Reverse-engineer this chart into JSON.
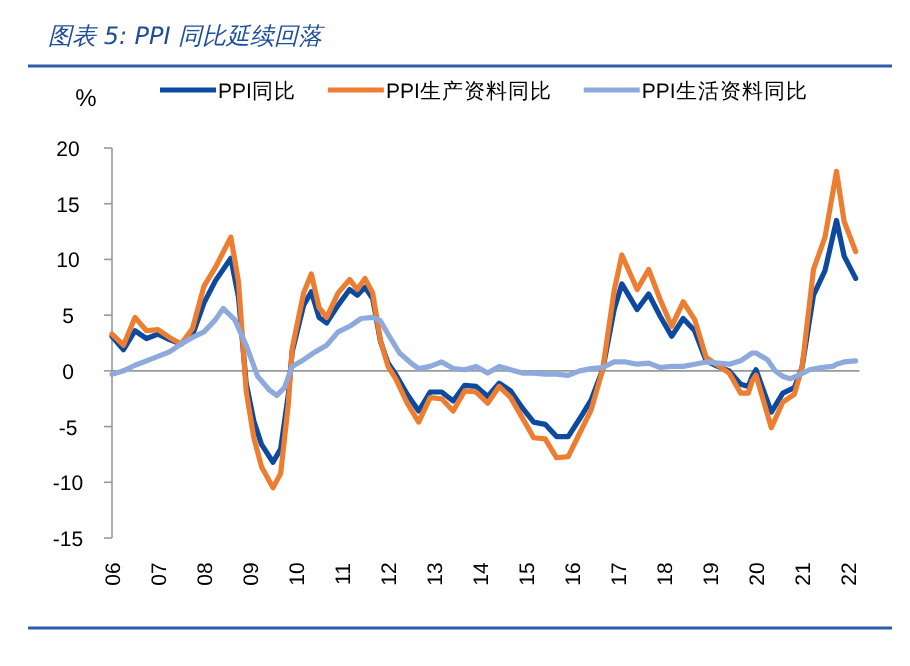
{
  "chart_data": {
    "type": "line",
    "title": "图表 5: PPI 同比延续回落",
    "ylabel": "%",
    "x": [
      "2006-01",
      "2006-04",
      "2006-07",
      "2006-10",
      "2007-01",
      "2007-04",
      "2007-07",
      "2007-10",
      "2008-01",
      "2008-04",
      "2008-08",
      "2008-10",
      "2008-12",
      "2009-02",
      "2009-04",
      "2009-07",
      "2009-09",
      "2009-11",
      "2009-12",
      "2010-03",
      "2010-05",
      "2010-07",
      "2010-09",
      "2010-12",
      "2011-03",
      "2011-05",
      "2011-07",
      "2011-09",
      "2011-11",
      "2012-01",
      "2012-03",
      "2012-06",
      "2012-09",
      "2012-12",
      "2013-03",
      "2013-06",
      "2013-09",
      "2013-12",
      "2014-03",
      "2014-06",
      "2014-09",
      "2014-12",
      "2015-03",
      "2015-06",
      "2015-09",
      "2015-12",
      "2016-03",
      "2016-06",
      "2016-09",
      "2016-12",
      "2017-02",
      "2017-06",
      "2017-09",
      "2017-12",
      "2018-03",
      "2018-06",
      "2018-09",
      "2018-12",
      "2019-03",
      "2019-06",
      "2019-09",
      "2019-11",
      "2019-12",
      "2020-01",
      "2020-05",
      "2020-08",
      "2020-11",
      "2021-01",
      "2021-04",
      "2021-07",
      "2021-10",
      "2021-12",
      "2022-03"
    ],
    "series": [
      {
        "name": "PPI同比",
        "color": "#0b4a9e",
        "values": [
          3.1,
          1.9,
          3.6,
          2.9,
          3.3,
          2.8,
          2.4,
          3.2,
          6.1,
          8.1,
          10.1,
          6.6,
          -1.1,
          -4.5,
          -6.6,
          -8.2,
          -7.0,
          -2.1,
          1.7,
          5.9,
          7.1,
          4.8,
          4.3,
          5.9,
          7.3,
          6.8,
          7.5,
          6.5,
          2.7,
          0.7,
          -0.3,
          -2.1,
          -3.6,
          -1.9,
          -1.9,
          -2.7,
          -1.3,
          -1.4,
          -2.3,
          -1.1,
          -1.8,
          -3.3,
          -4.6,
          -4.8,
          -5.9,
          -5.9,
          -4.3,
          -2.6,
          0.1,
          5.5,
          7.8,
          5.5,
          6.9,
          4.9,
          3.1,
          4.7,
          3.6,
          0.9,
          0.4,
          0.0,
          -1.2,
          -1.4,
          -0.5,
          0.1,
          -3.7,
          -2.0,
          -1.5,
          0.3,
          6.8,
          9.0,
          13.5,
          10.3,
          8.3
        ]
      },
      {
        "name": "PPI生产资料同比",
        "color": "#ed7d31",
        "values": [
          3.3,
          2.3,
          4.8,
          3.6,
          3.7,
          3.0,
          2.4,
          3.8,
          7.6,
          9.3,
          12.0,
          8.0,
          -1.8,
          -6.0,
          -8.6,
          -10.5,
          -9.2,
          -3.0,
          2.0,
          7.0,
          8.7,
          5.7,
          4.8,
          7.0,
          8.2,
          7.3,
          8.3,
          7.0,
          2.8,
          0.4,
          -0.7,
          -2.9,
          -4.6,
          -2.4,
          -2.5,
          -3.6,
          -1.8,
          -1.9,
          -2.9,
          -1.4,
          -2.4,
          -4.2,
          -6.0,
          -6.1,
          -7.8,
          -7.7,
          -5.6,
          -3.5,
          0.1,
          7.2,
          10.4,
          7.3,
          9.1,
          6.4,
          4.0,
          6.2,
          4.6,
          1.2,
          0.5,
          -0.2,
          -2.0,
          -2.0,
          -0.9,
          -0.4,
          -5.1,
          -2.8,
          -2.1,
          0.3,
          9.1,
          12.0,
          17.9,
          13.4,
          10.7
        ]
      },
      {
        "name": "PPI生活资料同比",
        "color": "#8eaadc",
        "x": [
          "2006-01",
          "2006-04",
          "2006-07",
          "2006-10",
          "2007-01",
          "2007-04",
          "2007-07",
          "2007-10",
          "2008-01",
          "2008-04",
          "2008-06",
          "2008-09",
          "2008-12",
          "2009-03",
          "2009-06",
          "2009-08",
          "2009-10",
          "2009-12",
          "2010-03",
          "2010-06",
          "2010-09",
          "2010-12",
          "2011-03",
          "2011-06",
          "2011-09",
          "2011-11",
          "2012-01",
          "2012-04",
          "2012-07",
          "2012-09",
          "2012-12",
          "2013-03",
          "2013-06",
          "2013-09",
          "2013-12",
          "2014-03",
          "2014-06",
          "2014-09",
          "2014-12",
          "2015-03",
          "2015-06",
          "2015-09",
          "2015-12",
          "2016-03",
          "2016-06",
          "2016-09",
          "2016-12",
          "2017-03",
          "2017-06",
          "2017-09",
          "2017-12",
          "2018-03",
          "2018-06",
          "2018-09",
          "2018-12",
          "2019-03",
          "2019-06",
          "2019-09",
          "2019-12",
          "2020-01",
          "2020-04",
          "2020-06",
          "2020-08",
          "2020-10",
          "2020-12",
          "2021-03",
          "2021-06",
          "2021-09",
          "2021-10",
          "2021-12",
          "2022-03"
        ],
        "values": [
          -0.3,
          0.0,
          0.5,
          0.9,
          1.3,
          1.7,
          2.4,
          3.0,
          3.5,
          4.6,
          5.6,
          4.6,
          2.3,
          -0.5,
          -1.7,
          -2.2,
          -1.5,
          0.4,
          1.0,
          1.7,
          2.3,
          3.5,
          4.0,
          4.7,
          4.8,
          4.5,
          3.3,
          1.6,
          0.7,
          0.2,
          0.4,
          0.8,
          0.2,
          0.1,
          0.4,
          -0.2,
          0.4,
          0.1,
          -0.2,
          -0.2,
          -0.3,
          -0.3,
          -0.4,
          0.0,
          0.2,
          0.3,
          0.8,
          0.8,
          0.6,
          0.7,
          0.3,
          0.4,
          0.4,
          0.6,
          0.8,
          0.7,
          0.6,
          0.9,
          1.6,
          1.6,
          1.0,
          0.0,
          -0.5,
          -0.7,
          -0.4,
          0.1,
          0.3,
          0.4,
          0.6,
          0.8,
          0.9
        ]
      }
    ],
    "xlim": [
      "2006-01",
      "2022-04"
    ],
    "xticks": [
      {
        "value": "2006",
        "label": "06"
      },
      {
        "value": "2007",
        "label": "07"
      },
      {
        "value": "2008",
        "label": "08"
      },
      {
        "value": "2009",
        "label": "09"
      },
      {
        "value": "2010",
        "label": "10"
      },
      {
        "value": "2011",
        "label": "11"
      },
      {
        "value": "2012",
        "label": "12"
      },
      {
        "value": "2013",
        "label": "13"
      },
      {
        "value": "2014",
        "label": "14"
      },
      {
        "value": "2015",
        "label": "15"
      },
      {
        "value": "2016",
        "label": "16"
      },
      {
        "value": "2017",
        "label": "17"
      },
      {
        "value": "2018",
        "label": "18"
      },
      {
        "value": "2019",
        "label": "19"
      },
      {
        "value": "2020",
        "label": "20"
      },
      {
        "value": "2021",
        "label": "21"
      },
      {
        "value": "2022",
        "label": "22"
      }
    ],
    "ylim": [
      -15,
      20
    ],
    "yticks": [
      -15,
      -10,
      -5,
      0,
      5,
      10,
      15,
      20
    ],
    "legend": "top",
    "marker": "none",
    "line_style": "solid"
  }
}
